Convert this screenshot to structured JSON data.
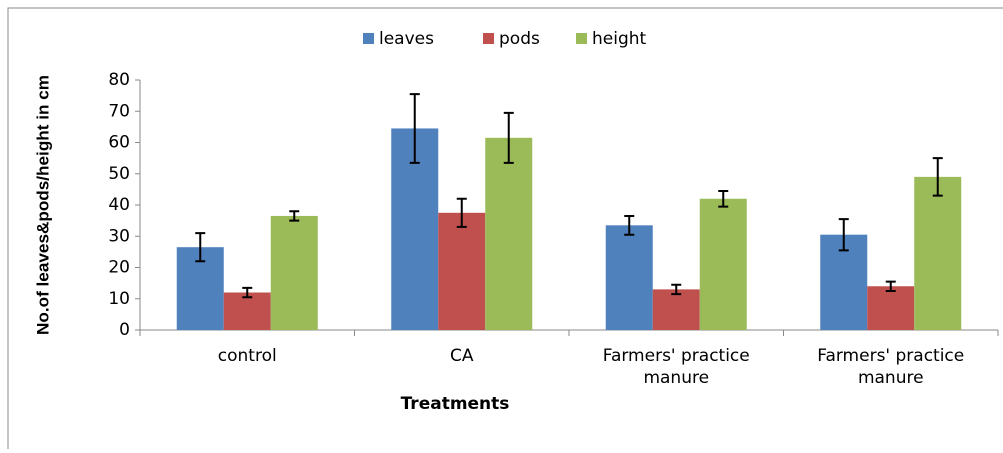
{
  "chart_data": {
    "type": "bar",
    "x_label": "Treatments",
    "y_label": "No.of leaves&pods/height in cm",
    "categories": [
      "control",
      "CA",
      "Farmers' practice\nmanure",
      "Farmers' practice\nmanure"
    ],
    "series": [
      {
        "name": "leaves",
        "color": "#4f81bd",
        "values": [
          26.5,
          64.5,
          33.5,
          30.5
        ],
        "errors": [
          4.5,
          11,
          3,
          5
        ]
      },
      {
        "name": "pods",
        "color": "#c0504d",
        "values": [
          12,
          37.5,
          13,
          14
        ],
        "errors": [
          1.5,
          4.5,
          1.5,
          1.5
        ]
      },
      {
        "name": "height",
        "color": "#9bbb59",
        "values": [
          36.5,
          61.5,
          42,
          49
        ],
        "errors": [
          1.5,
          8,
          2.5,
          6
        ]
      }
    ],
    "ylim": [
      0,
      80
    ],
    "yticks": [
      0,
      10,
      20,
      30,
      40,
      50,
      60,
      70,
      80
    ],
    "legend": "top",
    "grid": false
  }
}
